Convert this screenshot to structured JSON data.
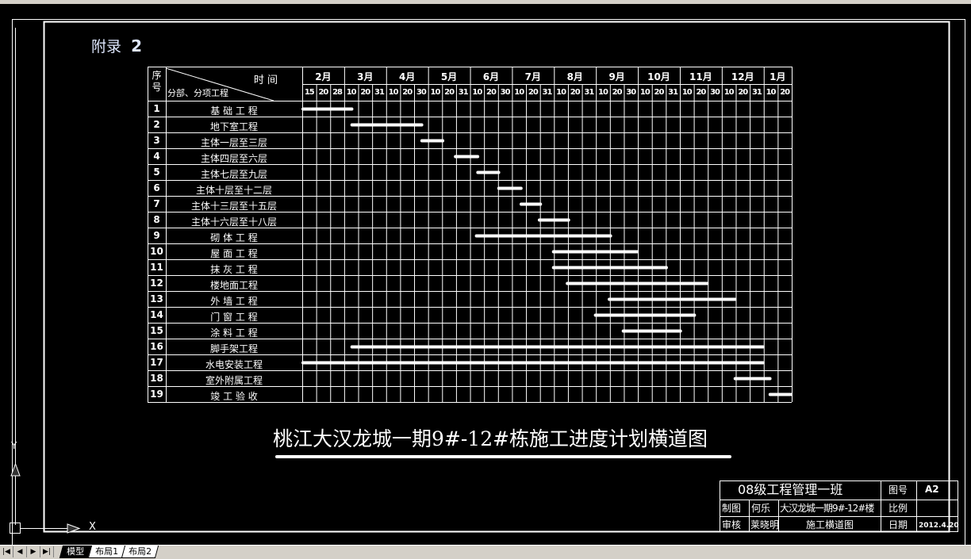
{
  "appendix_label": "附录",
  "appendix_number": "2",
  "drawing_title": "桃江大汉龙城一期9#-12#栋施工进度计划横道图",
  "table": {
    "seq_header": "序号",
    "time_header": "时 间",
    "item_header": "分部、分项工程",
    "months": [
      {
        "label": "2月",
        "days": [
          "15",
          "20",
          "28"
        ]
      },
      {
        "label": "3月",
        "days": [
          "10",
          "20",
          "31"
        ]
      },
      {
        "label": "4月",
        "days": [
          "10",
          "20",
          "30"
        ]
      },
      {
        "label": "5月",
        "days": [
          "10",
          "20",
          "31"
        ]
      },
      {
        "label": "6月",
        "days": [
          "10",
          "20",
          "30"
        ]
      },
      {
        "label": "7月",
        "days": [
          "10",
          "20",
          "31"
        ]
      },
      {
        "label": "8月",
        "days": [
          "10",
          "20",
          "31"
        ]
      },
      {
        "label": "9月",
        "days": [
          "10",
          "20",
          "30"
        ]
      },
      {
        "label": "10月",
        "days": [
          "10",
          "20",
          "31"
        ]
      },
      {
        "label": "11月",
        "days": [
          "10",
          "20",
          "30"
        ]
      },
      {
        "label": "12月",
        "days": [
          "10",
          "20",
          "31"
        ]
      },
      {
        "label": "1月",
        "days": [
          "10",
          "20"
        ]
      }
    ]
  },
  "chart_data": {
    "type": "gantt",
    "tasks": [
      {
        "seq": "1",
        "name": "基 础 工 程",
        "start": "2-10",
        "end": "3-6"
      },
      {
        "seq": "2",
        "name": "地下室工程",
        "start": "3-5",
        "end": "4-26"
      },
      {
        "seq": "3",
        "name": "主体一层至三层",
        "start": "4-25",
        "end": "5-11"
      },
      {
        "seq": "4",
        "name": "主体四层至六层",
        "start": "5-19",
        "end": "6-6"
      },
      {
        "seq": "5",
        "name": "主体七层至九层",
        "start": "6-5",
        "end": "6-21"
      },
      {
        "seq": "6",
        "name": "主体十层至十二层",
        "start": "6-20",
        "end": "7-7"
      },
      {
        "seq": "7",
        "name": "主体十三层至十五层",
        "start": "7-6",
        "end": "7-21"
      },
      {
        "seq": "8",
        "name": "主体十六层至十八层",
        "start": "7-19",
        "end": "8-11"
      },
      {
        "seq": "9",
        "name": "砌 体 工 程",
        "start": "6-4",
        "end": "9-11"
      },
      {
        "seq": "10",
        "name": "屋 面 工 程",
        "start": "7-30",
        "end": "9-30"
      },
      {
        "seq": "11",
        "name": "抹 灰 工 程",
        "start": "7-30",
        "end": "10-21"
      },
      {
        "seq": "12",
        "name": "楼地面工程",
        "start": "8-9",
        "end": "11-20"
      },
      {
        "seq": "13",
        "name": "外 墙 工 程",
        "start": "9-9",
        "end": "12-10"
      },
      {
        "seq": "14",
        "name": "门 窗 工 程",
        "start": "8-30",
        "end": "11-11"
      },
      {
        "seq": "15",
        "name": "涂 料 工 程",
        "start": "9-19",
        "end": "11-1"
      },
      {
        "seq": "16",
        "name": "脚手架工程",
        "start": "3-5",
        "end": "12-31"
      },
      {
        "seq": "17",
        "name": "水电安装工程",
        "start": "2-10",
        "end": "12-31"
      },
      {
        "seq": "18",
        "name": "室外附属工程",
        "start": "12-9",
        "end": "1-5"
      },
      {
        "seq": "19",
        "name": "竣 工 验 收",
        "start": "1-4",
        "end": "1-20"
      }
    ],
    "bar_color": "#ffffff"
  },
  "title_block": {
    "class_name": "08级工程管理一班",
    "drawing_no_label": "图号",
    "sheet_size": "A2",
    "drawn_by_label": "制图",
    "drawn_by": "何乐",
    "project_line1": "大汉龙城一期9#-12#楼",
    "project_line2": "施工横道图",
    "ratio_label": "比例",
    "reviewed_by_label": "审核",
    "reviewed_by": "莱晓明",
    "date_label": "日期",
    "date": "2012.4.20"
  },
  "ucs": {
    "x_label": "X",
    "y_label": "Y"
  },
  "layout_tabs": {
    "nav": [
      "|◀",
      "◀",
      "▶",
      "▶|"
    ],
    "tabs": [
      "模型",
      "布局1",
      "布局2"
    ],
    "active": "模型"
  }
}
